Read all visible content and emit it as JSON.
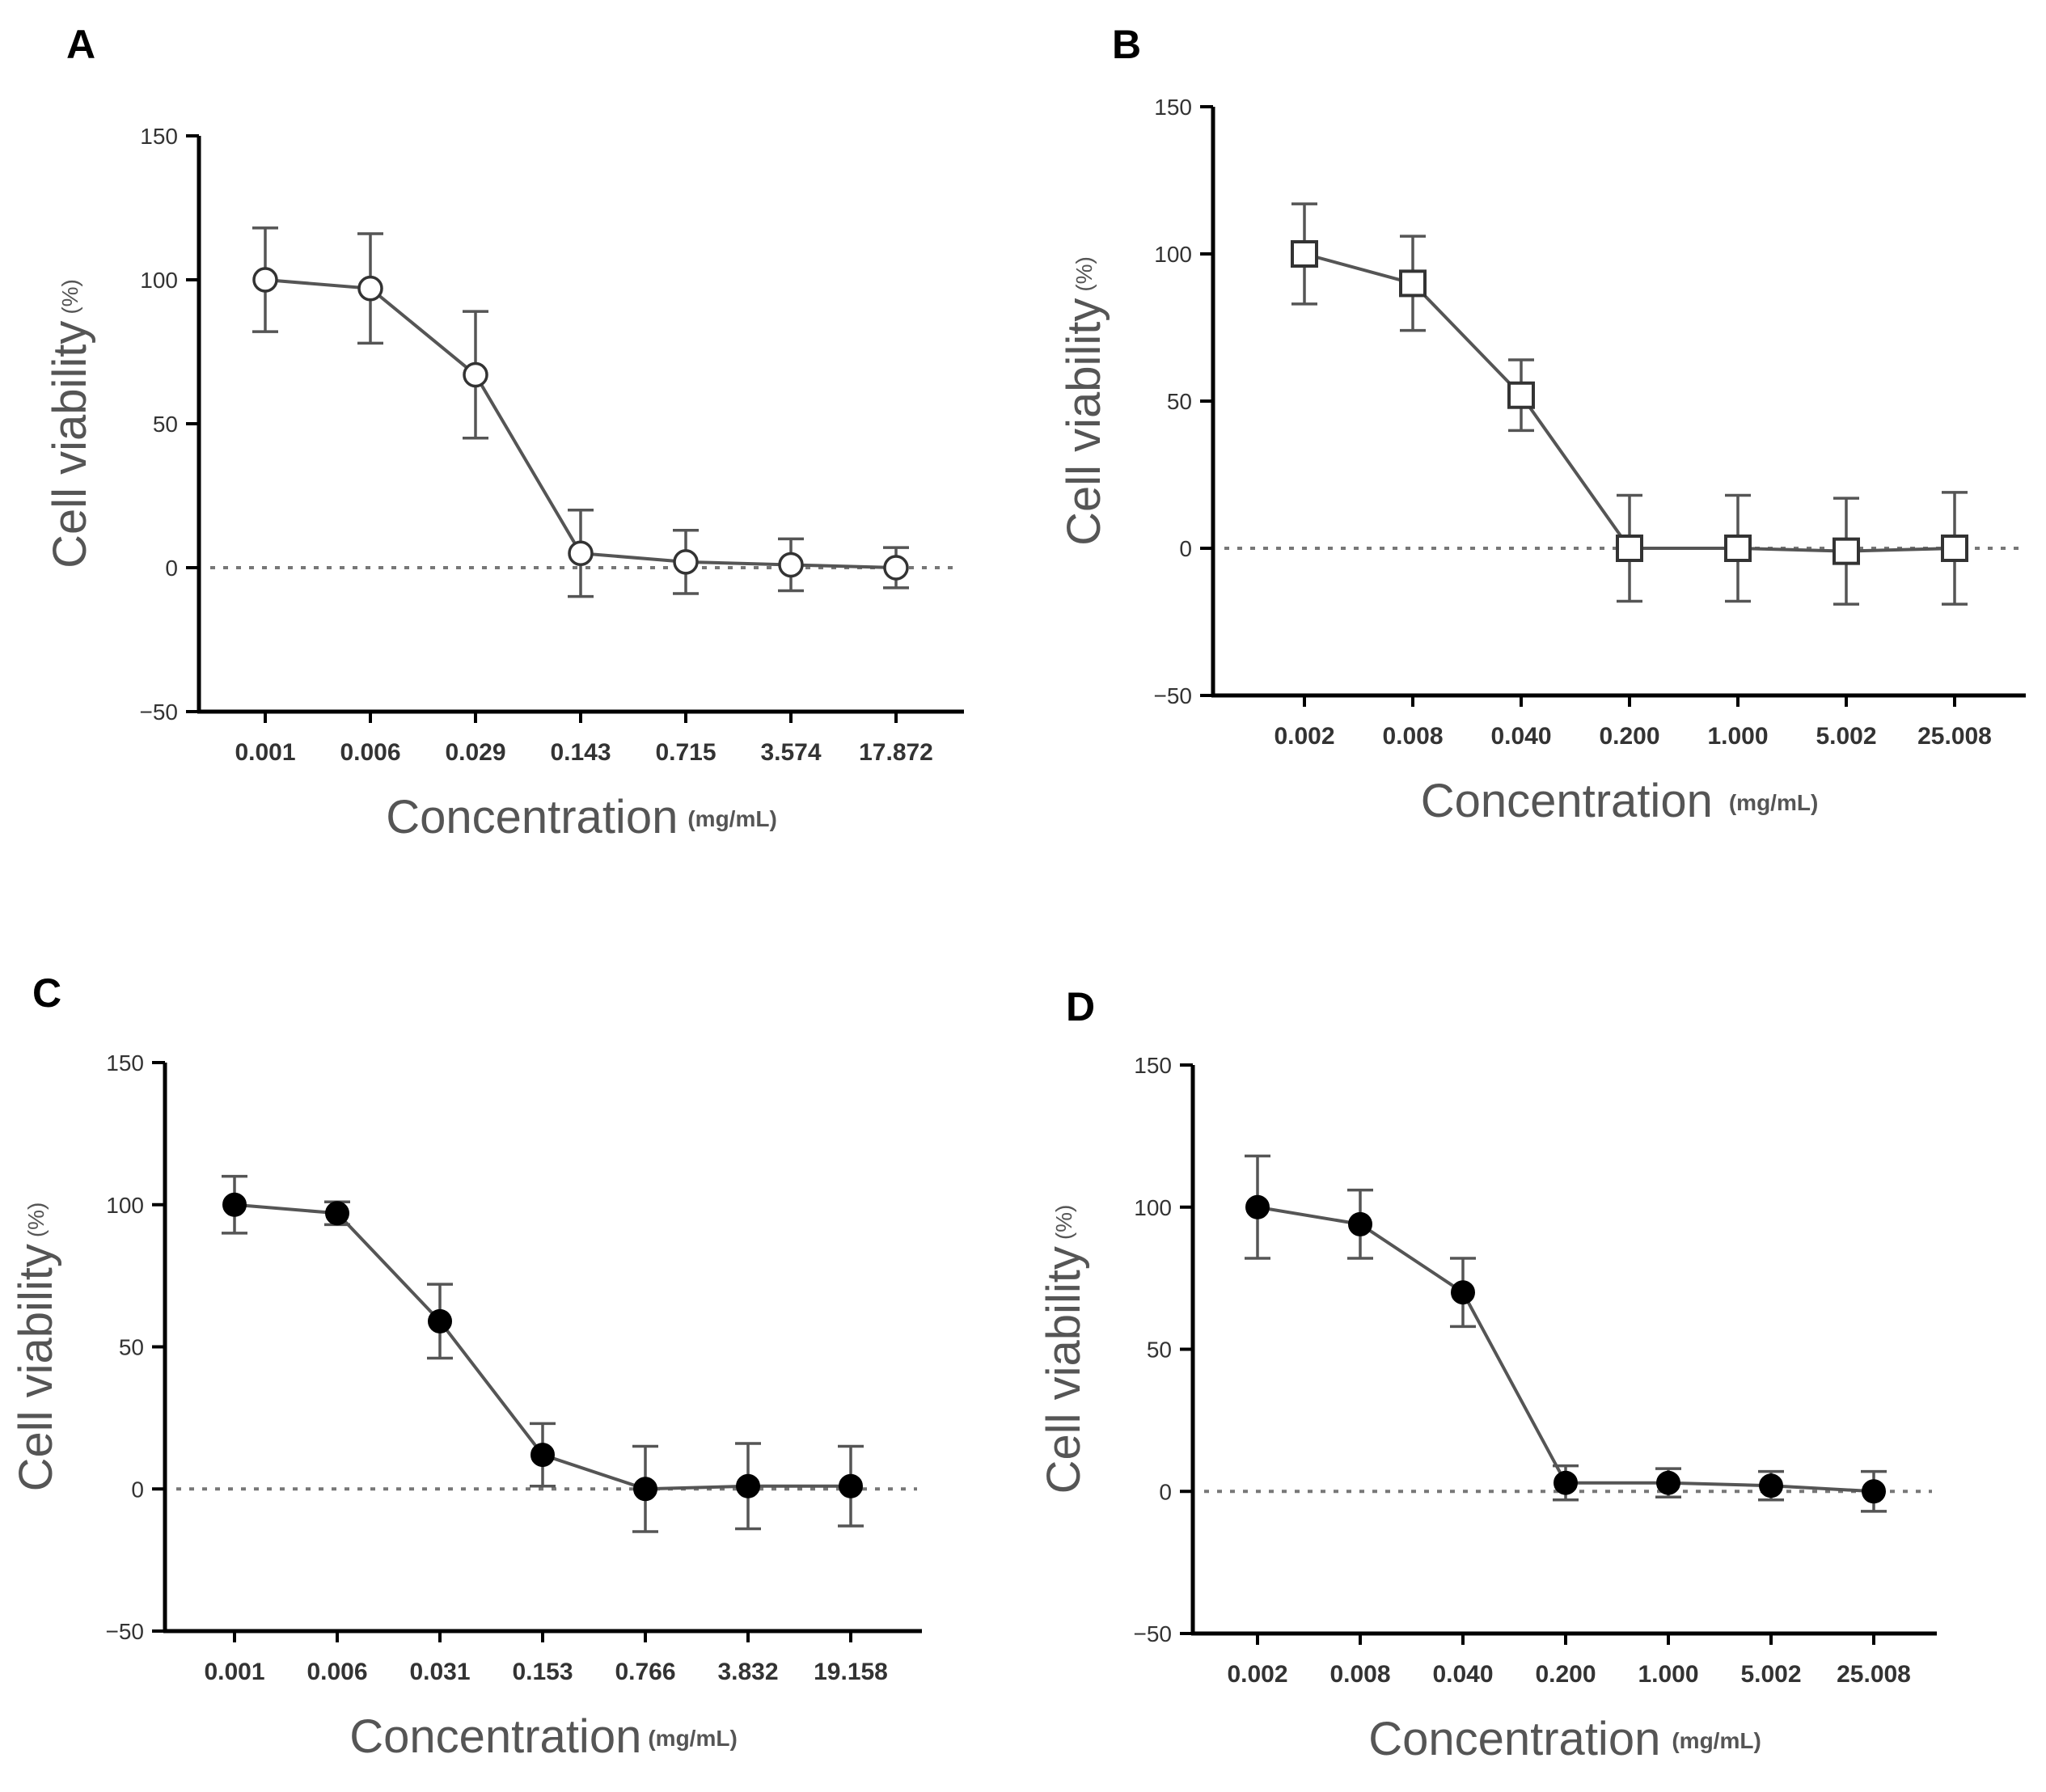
{
  "chart_data": [
    {
      "panel_label": "A",
      "type": "line",
      "marker": "open-circle",
      "categories": [
        "0.001",
        "0.006",
        "0.029",
        "0.143",
        "0.715",
        "3.574",
        "17.872"
      ],
      "values": [
        100,
        97,
        67,
        5,
        2,
        1,
        0
      ],
      "errors": [
        18,
        19,
        22,
        15,
        11,
        9,
        7
      ],
      "ylim": [
        -50,
        150
      ],
      "yticks": [
        -50,
        0,
        50,
        100,
        150
      ],
      "reference_line_y": 0,
      "xlabel": "Concentration",
      "xlabel_unit": "(mg/mL)",
      "ylabel": "Cell viability",
      "ylabel_unit": "(%)"
    },
    {
      "panel_label": "B",
      "type": "line",
      "marker": "open-square",
      "categories": [
        "0.002",
        "0.008",
        "0.040",
        "0.200",
        "1.000",
        "5.002",
        "25.008"
      ],
      "values": [
        100,
        90,
        52,
        0,
        0,
        -1,
        0
      ],
      "errors": [
        17,
        16,
        12,
        18,
        18,
        18,
        19
      ],
      "ylim": [
        -50,
        150
      ],
      "yticks": [
        -50,
        0,
        50,
        100,
        150
      ],
      "reference_line_y": 0,
      "xlabel": "Concentration",
      "xlabel_unit": "(mg/mL)",
      "ylabel": "Cell viability",
      "ylabel_unit": "(%)"
    },
    {
      "panel_label": "C",
      "type": "line",
      "marker": "filled-circle",
      "categories": [
        "0.001",
        "0.006",
        "0.031",
        "0.153",
        "0.766",
        "3.832",
        "19.158"
      ],
      "values": [
        100,
        97,
        59,
        12,
        0,
        1,
        1
      ],
      "errors": [
        10,
        4,
        13,
        11,
        15,
        15,
        14
      ],
      "ylim": [
        -50,
        150
      ],
      "yticks": [
        -50,
        0,
        50,
        100,
        150
      ],
      "reference_line_y": 0,
      "xlabel": "Concentration",
      "xlabel_unit": "(mg/mL)",
      "ylabel": "Cell viability",
      "ylabel_unit": "(%)"
    },
    {
      "panel_label": "D",
      "type": "line",
      "marker": "filled-circle",
      "categories": [
        "0.002",
        "0.008",
        "0.040",
        "0.200",
        "1.000",
        "5.002",
        "25.008"
      ],
      "values": [
        100,
        94,
        70,
        3,
        3,
        2,
        0
      ],
      "errors": [
        18,
        12,
        12,
        6,
        5,
        5,
        7
      ],
      "ylim": [
        -50,
        150
      ],
      "yticks": [
        -50,
        0,
        50,
        100,
        150
      ],
      "reference_line_y": 0,
      "xlabel": "Concentration",
      "xlabel_unit": "(mg/mL)",
      "ylabel": "Cell viability",
      "ylabel_unit": "(%)"
    }
  ],
  "colors": {
    "axis": "#000000",
    "line": "#555555",
    "marker": "#333333",
    "error_bar": "#555555",
    "reference_line": "#777777",
    "axis_text": "#555555",
    "tick_text": "#333333",
    "panel_label": "#000000"
  }
}
